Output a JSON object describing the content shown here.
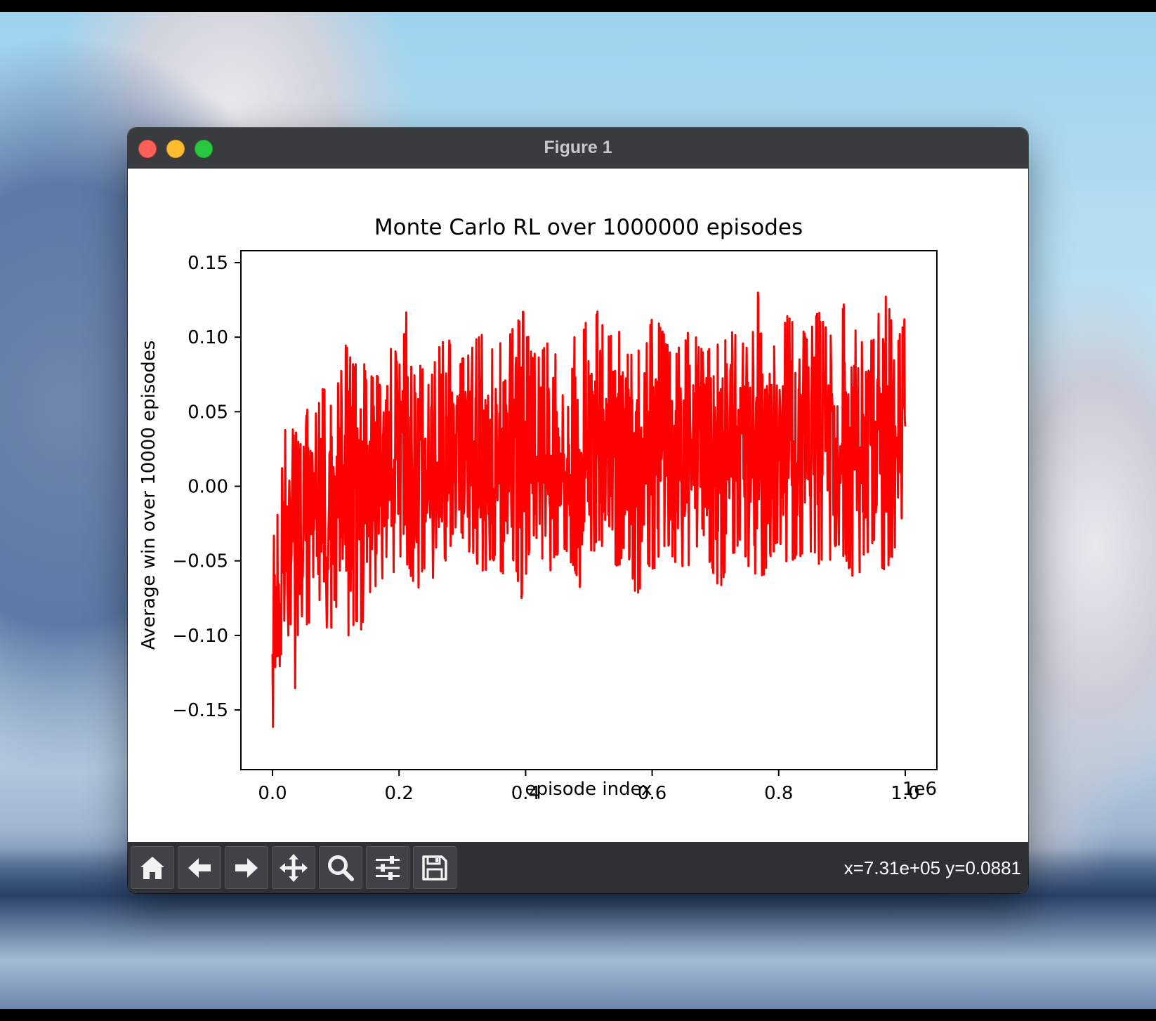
{
  "window": {
    "title": "Figure 1"
  },
  "toolbar": {
    "icons": [
      "home-icon",
      "back-arrow-icon",
      "forward-arrow-icon",
      "pan-move-icon",
      "zoom-magnifier-icon",
      "configure-sliders-icon",
      "save-floppy-icon"
    ],
    "coords_text": "x=7.31e+05 y=0.0881"
  },
  "chart_data": {
    "type": "line",
    "title": "Monte Carlo RL over 1000000 episodes",
    "xlabel": "episode index",
    "ylabel": "Average win over 10000 episodes",
    "x_offset_label": "1e6",
    "xlim": [
      -0.05,
      1.05
    ],
    "ylim": [
      -0.19,
      0.158
    ],
    "xticks": [
      0.0,
      0.2,
      0.4,
      0.6,
      0.8,
      1.0
    ],
    "xtick_labels": [
      "0.0",
      "0.2",
      "0.4",
      "0.6",
      "0.8",
      "1.0"
    ],
    "yticks": [
      0.15,
      0.1,
      0.05,
      0.0,
      -0.05,
      -0.1,
      -0.15
    ],
    "ytick_labels": [
      "0.15",
      "0.10",
      "0.05",
      "0.00",
      "−0.05",
      "−0.10",
      "−0.15"
    ],
    "grid": false,
    "color": "#ff0000",
    "series": [
      {
        "x": [
          0.0,
          0.002,
          0.004,
          0.006,
          0.008,
          0.01,
          0.013,
          0.016,
          0.019,
          0.022,
          0.025,
          0.028,
          0.032,
          0.036,
          0.04,
          0.045,
          0.05,
          0.056,
          0.062,
          0.068,
          0.075,
          0.082,
          0.09,
          0.098,
          0.106,
          0.114,
          0.122,
          0.13,
          0.14,
          0.15,
          0.16,
          0.17,
          0.18,
          0.19,
          0.2,
          0.215,
          0.23,
          0.245,
          0.26,
          0.275,
          0.29,
          0.305,
          0.32,
          0.335,
          0.35,
          0.365,
          0.38,
          0.395,
          0.41,
          0.425,
          0.44,
          0.455,
          0.47,
          0.485,
          0.5,
          0.515,
          0.53,
          0.545,
          0.56,
          0.575,
          0.59,
          0.605,
          0.62,
          0.635,
          0.65,
          0.665,
          0.68,
          0.695,
          0.71,
          0.725,
          0.74,
          0.755,
          0.77,
          0.785,
          0.8,
          0.815,
          0.83,
          0.845,
          0.86,
          0.875,
          0.89,
          0.905,
          0.92,
          0.935,
          0.95,
          0.965,
          0.98,
          0.99,
          1.0
        ],
        "y_high": [
          -0.06,
          -0.03,
          -0.02,
          -0.02,
          0.0,
          -0.01,
          -0.01,
          0.03,
          0.05,
          0.02,
          0.03,
          0.03,
          0.04,
          0.04,
          0.03,
          0.03,
          0.03,
          0.06,
          0.04,
          0.05,
          0.06,
          0.07,
          0.05,
          0.07,
          0.07,
          0.1,
          0.09,
          0.08,
          0.1,
          0.07,
          0.08,
          0.07,
          0.09,
          0.1,
          0.08,
          0.13,
          0.09,
          0.07,
          0.09,
          0.11,
          0.08,
          0.09,
          0.1,
          0.11,
          0.09,
          0.1,
          0.11,
          0.12,
          0.09,
          0.09,
          0.1,
          0.08,
          0.1,
          0.11,
          0.11,
          0.12,
          0.1,
          0.11,
          0.09,
          0.09,
          0.1,
          0.12,
          0.1,
          0.09,
          0.1,
          0.11,
          0.09,
          0.1,
          0.1,
          0.11,
          0.1,
          0.09,
          0.14,
          0.1,
          0.09,
          0.12,
          0.11,
          0.1,
          0.12,
          0.11,
          0.1,
          0.13,
          0.11,
          0.1,
          0.1,
          0.14,
          0.11,
          0.1,
          0.12
        ],
        "y_low": [
          -0.175,
          -0.14,
          -0.15,
          -0.12,
          -0.11,
          -0.13,
          -0.12,
          -0.1,
          -0.09,
          -0.11,
          -0.14,
          -0.12,
          -0.09,
          -0.145,
          -0.1,
          -0.09,
          -0.08,
          -0.1,
          -0.09,
          -0.08,
          -0.08,
          -0.09,
          -0.11,
          -0.08,
          -0.09,
          -0.07,
          -0.11,
          -0.09,
          -0.1,
          -0.08,
          -0.07,
          -0.06,
          -0.07,
          -0.06,
          -0.05,
          -0.06,
          -0.07,
          -0.05,
          -0.07,
          -0.05,
          -0.03,
          -0.04,
          -0.05,
          -0.06,
          -0.05,
          -0.06,
          -0.05,
          -0.08,
          -0.03,
          -0.05,
          -0.06,
          -0.04,
          -0.05,
          -0.07,
          -0.05,
          -0.04,
          -0.05,
          -0.06,
          -0.04,
          -0.08,
          -0.05,
          -0.06,
          -0.04,
          -0.05,
          -0.06,
          -0.05,
          -0.03,
          -0.06,
          -0.07,
          -0.05,
          -0.04,
          -0.06,
          -0.07,
          -0.05,
          -0.04,
          -0.06,
          -0.05,
          -0.04,
          -0.05,
          -0.06,
          -0.04,
          -0.05,
          -0.07,
          -0.05,
          -0.04,
          -0.06,
          -0.05,
          -0.03,
          -0.02
        ]
      }
    ]
  }
}
